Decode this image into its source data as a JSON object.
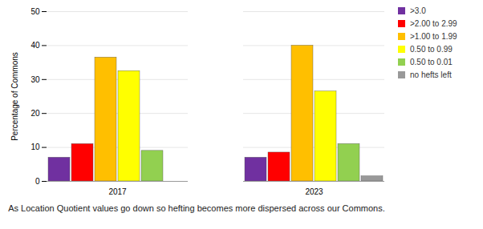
{
  "chart_data": {
    "type": "bar",
    "categories": [
      "2017",
      "2023"
    ],
    "series": [
      {
        "name": ">3.0",
        "color": "#7030a0",
        "values": [
          7,
          7
        ]
      },
      {
        "name": ">2.00 to 2.99",
        "color": "#ff0000",
        "values": [
          11,
          8.5
        ]
      },
      {
        "name": ">1.00 to 1.99",
        "color": "#ffbf00",
        "values": [
          36.5,
          40
        ]
      },
      {
        "name": "0.50 to 0.99",
        "color": "#ffff00",
        "values": [
          32.5,
          26.5
        ]
      },
      {
        "name": "0.50  to 0.01",
        "color": "#92d050",
        "values": [
          9,
          11
        ]
      },
      {
        "name": "no hefts left",
        "color": "#999999",
        "values": [
          0,
          1.5
        ]
      }
    ],
    "ylabel": "Percentage of Commons",
    "caption": "As Location Quotient values go down so hefting becomes more dispersed across our Commons.",
    "ylim": [
      0,
      50
    ],
    "yticks": [
      0,
      10,
      20,
      30,
      40,
      50
    ],
    "grid": true,
    "legend": "right"
  }
}
